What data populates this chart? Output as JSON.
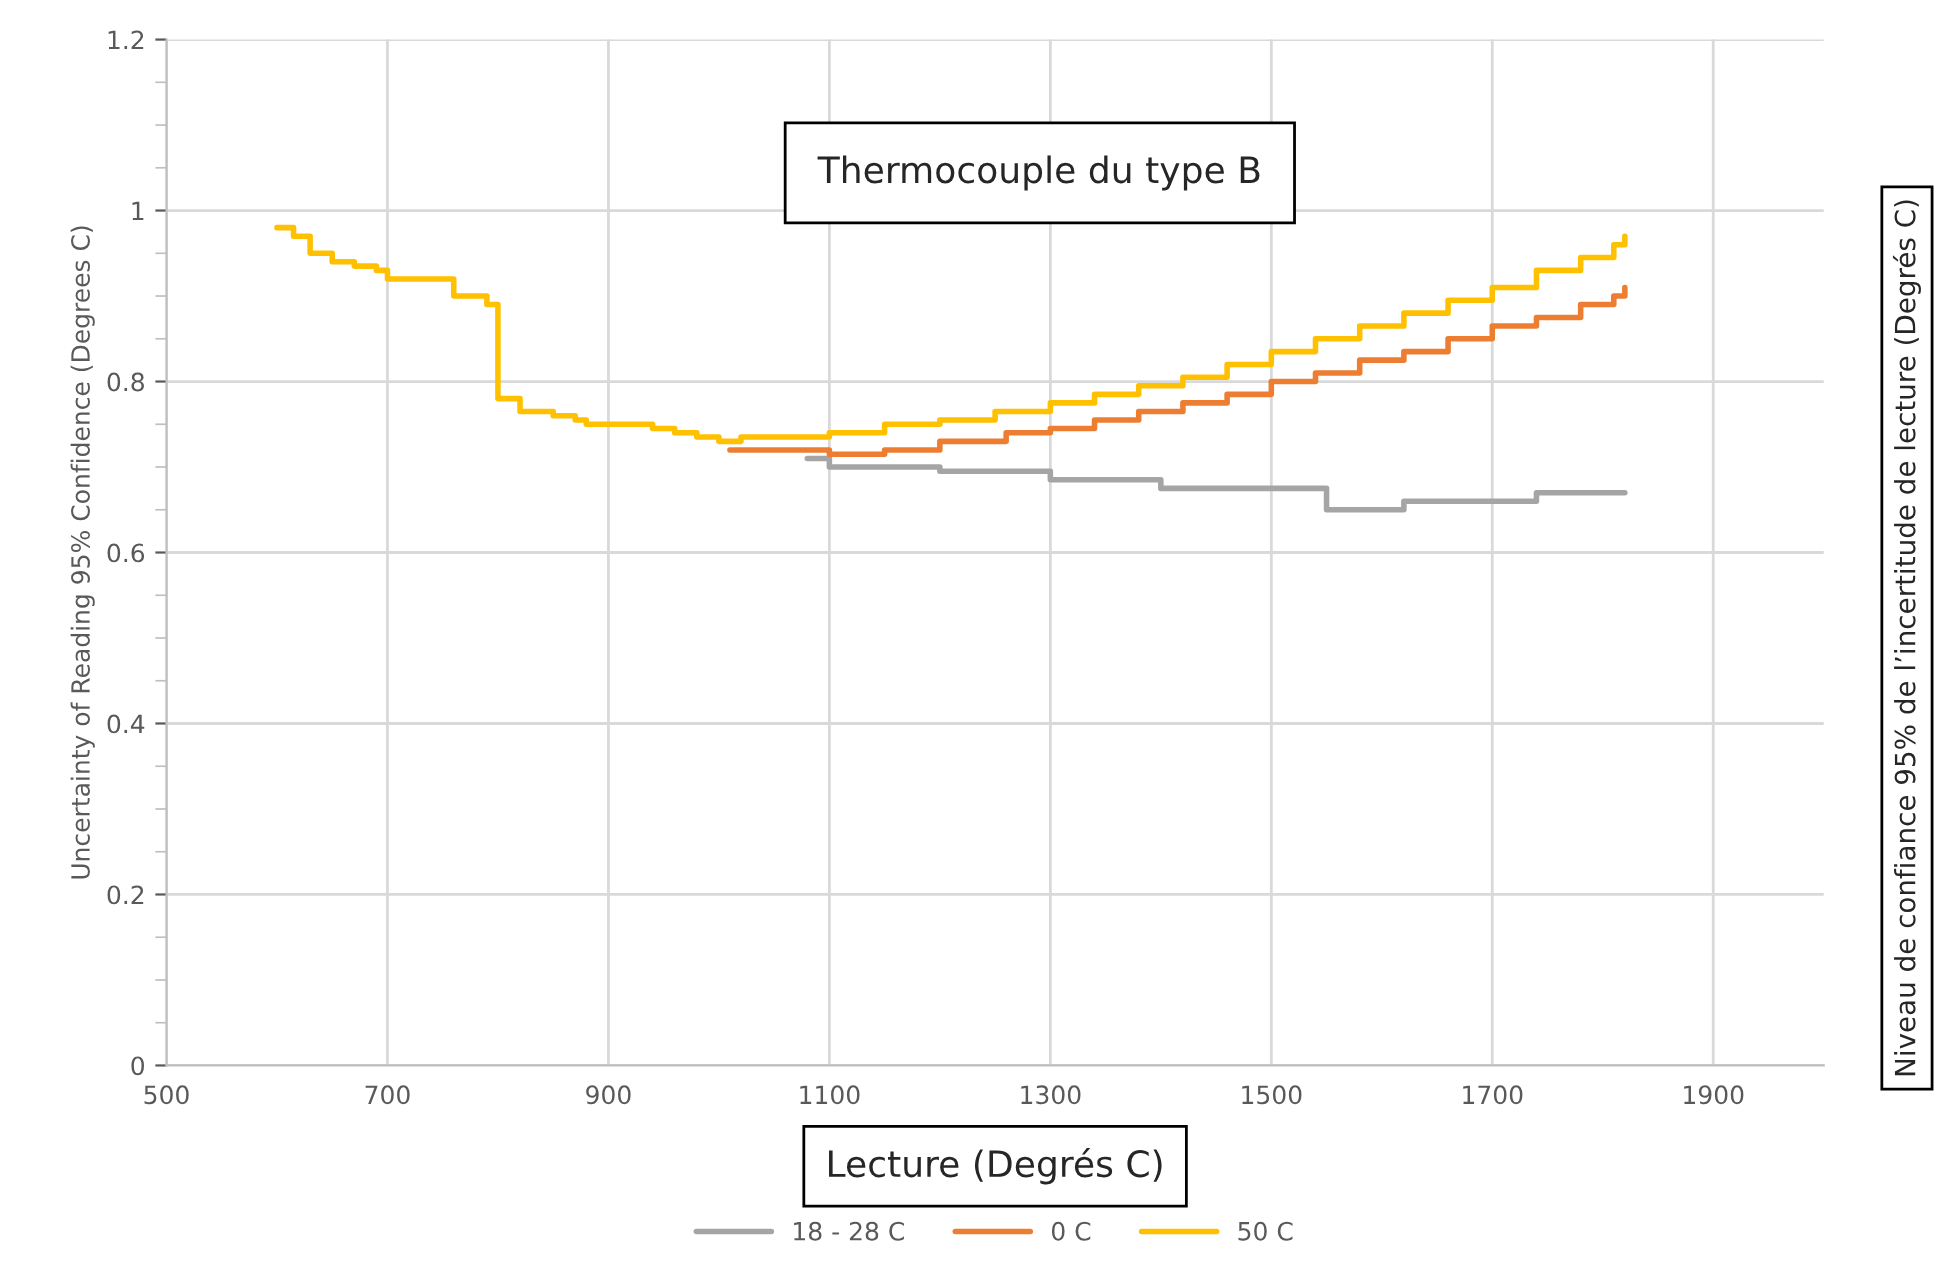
{
  "chart_data": {
    "type": "step",
    "title": "Thermocouple du type B",
    "xlabel": "Lecture (Degrés C)",
    "ylabel": "Uncertainty of Reading 95% Confidence (Degrees C)",
    "annotations": [
      "Niveau de confiance 95% de l’incertitude de lecture (Degrés C)"
    ],
    "xlim": [
      500,
      2000
    ],
    "xticks": [
      500,
      700,
      900,
      1100,
      1300,
      1500,
      1700,
      1900
    ],
    "ylim": [
      0,
      1.2
    ],
    "yticks": [
      0,
      0.2,
      0.4,
      0.6,
      0.8,
      1,
      1.2
    ],
    "grid": true,
    "legend": "bottom",
    "line_style": "solid",
    "marker": "none",
    "series": [
      {
        "name": "18 - 28 C",
        "color": "#a5a5a5",
        "x": [
          1080,
          1100,
          1160,
          1200,
          1300,
          1400,
          1550,
          1620,
          1740,
          1820
        ],
        "values": [
          0.71,
          0.7,
          0.7,
          0.695,
          0.685,
          0.675,
          0.65,
          0.66,
          0.67,
          0.67
        ]
      },
      {
        "name": "0 C",
        "color": "#ed7d31",
        "x": [
          1010,
          1100,
          1150,
          1200,
          1260,
          1300,
          1340,
          1380,
          1420,
          1460,
          1500,
          1540,
          1580,
          1620,
          1660,
          1700,
          1740,
          1780,
          1810,
          1820
        ],
        "values": [
          0.72,
          0.715,
          0.72,
          0.73,
          0.74,
          0.745,
          0.755,
          0.765,
          0.775,
          0.785,
          0.8,
          0.81,
          0.825,
          0.835,
          0.85,
          0.865,
          0.875,
          0.89,
          0.9,
          0.91
        ]
      },
      {
        "name": "50 C",
        "color": "#ffc000",
        "x": [
          600,
          615,
          630,
          650,
          670,
          690,
          700,
          760,
          790,
          800,
          820,
          850,
          870,
          880,
          940,
          960,
          980,
          1000,
          1020,
          1060,
          1100,
          1150,
          1200,
          1250,
          1300,
          1340,
          1380,
          1420,
          1460,
          1500,
          1540,
          1580,
          1620,
          1660,
          1700,
          1740,
          1780,
          1810,
          1820
        ],
        "values": [
          0.98,
          0.97,
          0.95,
          0.94,
          0.935,
          0.93,
          0.92,
          0.9,
          0.89,
          0.78,
          0.765,
          0.76,
          0.755,
          0.75,
          0.745,
          0.74,
          0.735,
          0.73,
          0.735,
          0.735,
          0.74,
          0.75,
          0.755,
          0.765,
          0.775,
          0.785,
          0.795,
          0.805,
          0.82,
          0.835,
          0.85,
          0.865,
          0.88,
          0.895,
          0.91,
          0.93,
          0.945,
          0.96,
          0.97
        ]
      }
    ]
  }
}
